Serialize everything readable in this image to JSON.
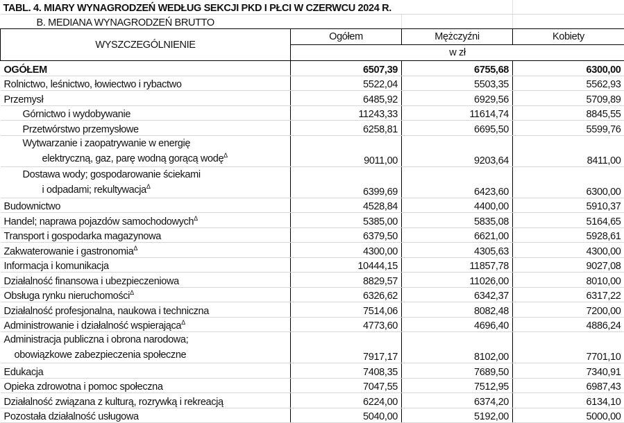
{
  "title": "TABL. 4. MIARY WYNAGRODZEŃ WEDŁUG SEKCJI PKD I PŁCI W CZERWCU 2024 R.",
  "subtitle": "B. MEDIANA WYNAGRODZEŃ BRUTTO",
  "header": {
    "label_col": "WYSZCZEGÓLNIENIE",
    "cols": [
      "Ogółem",
      "Mężczyźni",
      "Kobiety"
    ],
    "unit": "w zł"
  },
  "footnote_mark": "Δ",
  "rows": [
    {
      "lines": [
        "OGÓŁEM"
      ],
      "values": [
        "6507,39",
        "6755,68",
        "6300,00"
      ],
      "bold": true,
      "indent": 0
    },
    {
      "lines": [
        "Rolnictwo, leśnictwo, łowiectwo i rybactwo"
      ],
      "values": [
        "5522,04",
        "5503,35",
        "5562,93"
      ],
      "indent": 0
    },
    {
      "lines": [
        "Przemysł"
      ],
      "values": [
        "6485,92",
        "6929,56",
        "5709,89"
      ],
      "indent": 0
    },
    {
      "lines": [
        "Górnictwo i wydobywanie"
      ],
      "values": [
        "11243,33",
        "11614,74",
        "8845,55"
      ],
      "indent": 1
    },
    {
      "lines": [
        "Przetwórstwo przemysłowe"
      ],
      "values": [
        "6258,81",
        "6695,50",
        "5599,76"
      ],
      "indent": 1
    },
    {
      "lines": [
        "Wytwarzanie i zaopatrywanie w energię",
        "elektryczną, gaz, parę wodną gorącą wodę"
      ],
      "values": [
        "9011,00",
        "9203,64",
        "8411,00"
      ],
      "indent": 1,
      "mark": true
    },
    {
      "lines": [
        "Dostawa wody; gospodarowanie ściekami",
        "i odpadami; rekultywacja"
      ],
      "values": [
        "6399,69",
        "6423,60",
        "6300,00"
      ],
      "indent": 1,
      "mark": true
    },
    {
      "lines": [
        "Budownictwo"
      ],
      "values": [
        "4528,84",
        "4400,00",
        "5910,37"
      ],
      "indent": 0
    },
    {
      "lines": [
        "Handel; naprawa pojazdów samochodowych"
      ],
      "values": [
        "5385,00",
        "5835,08",
        "5164,65"
      ],
      "indent": 0,
      "mark": true
    },
    {
      "lines": [
        "Transport i gospodarka magazynowa"
      ],
      "values": [
        "6379,50",
        "6621,00",
        "5928,61"
      ],
      "indent": 0
    },
    {
      "lines": [
        "Zakwaterowanie i gastronomia"
      ],
      "values": [
        "4300,00",
        "4305,63",
        "4300,00"
      ],
      "indent": 0,
      "mark": true
    },
    {
      "lines": [
        "Informacja i komunikacja"
      ],
      "values": [
        "10444,15",
        "11857,78",
        "9027,08"
      ],
      "indent": 0
    },
    {
      "lines": [
        "Działalność finansowa i ubezpieczeniowa"
      ],
      "values": [
        "8829,57",
        "11026,00",
        "8010,00"
      ],
      "indent": 0
    },
    {
      "lines": [
        "Obsługa rynku nieruchomości"
      ],
      "values": [
        "6326,62",
        "6342,37",
        "6317,22"
      ],
      "indent": 0,
      "mark": true
    },
    {
      "lines": [
        "Działalność profesjonalna, naukowa i techniczna"
      ],
      "values": [
        "7514,06",
        "8082,48",
        "7200,00"
      ],
      "indent": 0
    },
    {
      "lines": [
        "Administrowanie i działalność wspierająca"
      ],
      "values": [
        "4773,60",
        "4696,40",
        "4886,24"
      ],
      "indent": 0,
      "mark": true
    },
    {
      "lines": [
        "Administracja publiczna i obrona narodowa;",
        "obowiązkowe zabezpieczenia społeczne"
      ],
      "values": [
        "7917,17",
        "8102,00",
        "7701,10"
      ],
      "indent": 0
    },
    {
      "lines": [
        "Edukacja"
      ],
      "values": [
        "7408,35",
        "7689,50",
        "7340,91"
      ],
      "indent": 0
    },
    {
      "lines": [
        "Opieka zdrowotna i pomoc społeczna"
      ],
      "values": [
        "7047,55",
        "7512,95",
        "6987,43"
      ],
      "indent": 0
    },
    {
      "lines": [
        "Działalność związana z kulturą, rozrywką i rekreacją"
      ],
      "values": [
        "6224,00",
        "6374,20",
        "6134,10"
      ],
      "indent": 0
    },
    {
      "lines": [
        "Pozostała działalność usługowa"
      ],
      "values": [
        "5040,00",
        "5192,00",
        "5000,00"
      ],
      "indent": 0
    }
  ]
}
